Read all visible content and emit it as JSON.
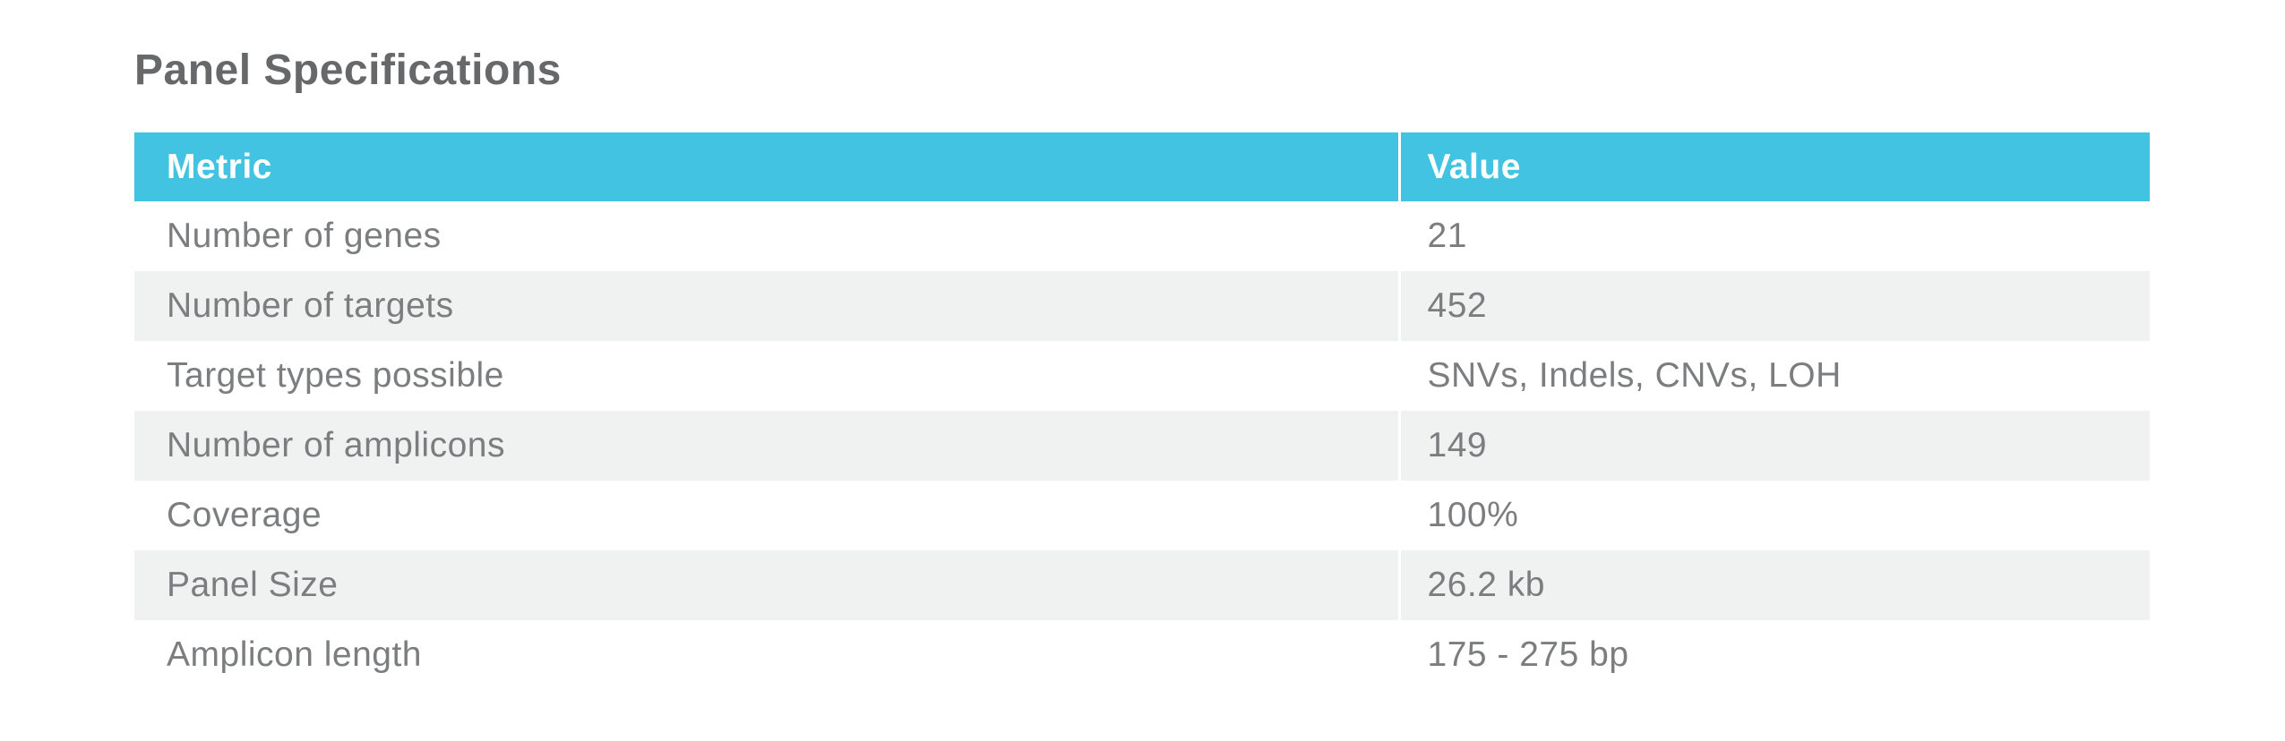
{
  "page": {
    "title": "Panel Specifications"
  },
  "colors": {
    "header_bg": "#42c3e2",
    "header_text": "#ffffff",
    "row_alt_bg": "#f0f1f1",
    "body_text": "#7b7d7e",
    "title_text": "#67686a",
    "page_bg": "#ffffff"
  },
  "table": {
    "headers": [
      "Metric",
      "Value"
    ],
    "rows": [
      {
        "metric": "Number of genes",
        "value": "21"
      },
      {
        "metric": "Number of targets",
        "value": "452"
      },
      {
        "metric": "Target types possible",
        "value": "SNVs, Indels, CNVs, LOH"
      },
      {
        "metric": "Number of amplicons",
        "value": "149"
      },
      {
        "metric": "Coverage",
        "value": "100%"
      },
      {
        "metric": "Panel Size",
        "value": "26.2 kb"
      },
      {
        "metric": "Amplicon length",
        "value": "175 - 275 bp"
      }
    ]
  }
}
